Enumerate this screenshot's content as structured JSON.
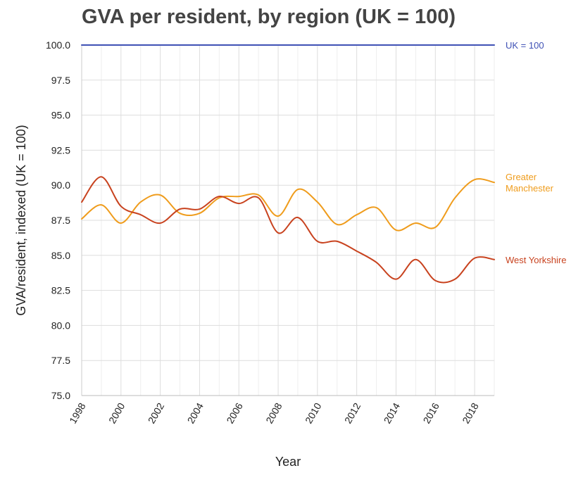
{
  "chart_data": {
    "type": "line",
    "title": "GVA per resident, by region (UK = 100)",
    "xlabel": "Year",
    "ylabel": "GVA/resident, indexed (UK = 100)",
    "xlim": [
      1998,
      2019
    ],
    "ylim": [
      75,
      100
    ],
    "x_ticks": [
      "1998",
      "2000",
      "2002",
      "2004",
      "2006",
      "2008",
      "2010",
      "2012",
      "2014",
      "2016",
      "2018"
    ],
    "y_ticks": [
      "75.0",
      "77.5",
      "80.0",
      "82.5",
      "85.0",
      "87.5",
      "90.0",
      "92.5",
      "95.0",
      "97.5",
      "100.0"
    ],
    "grid": true,
    "legend": "inline labels at right end of lines",
    "x": [
      1998,
      1999,
      2000,
      2001,
      2002,
      2003,
      2004,
      2005,
      2006,
      2007,
      2008,
      2009,
      2010,
      2011,
      2012,
      2013,
      2014,
      2015,
      2016,
      2017,
      2018,
      2019
    ],
    "series": [
      {
        "name": "UK = 100",
        "color": "#3f51b5",
        "label_lines": [
          "UK = 100"
        ],
        "values": [
          100,
          100,
          100,
          100,
          100,
          100,
          100,
          100,
          100,
          100,
          100,
          100,
          100,
          100,
          100,
          100,
          100,
          100,
          100,
          100,
          100,
          100
        ]
      },
      {
        "name": "Greater Manchester",
        "color": "#ef9c1c",
        "label_lines": [
          "Greater",
          "Manchester"
        ],
        "values": [
          87.6,
          88.6,
          87.3,
          88.8,
          89.3,
          88.0,
          88.0,
          89.1,
          89.2,
          89.3,
          87.8,
          89.7,
          88.8,
          87.2,
          87.9,
          88.4,
          86.8,
          87.3,
          87.0,
          89.1,
          90.4,
          90.2
        ]
      },
      {
        "name": "West Yorkshire",
        "color": "#c8421e",
        "label_lines": [
          "West Yorkshire"
        ],
        "values": [
          88.8,
          90.6,
          88.5,
          87.9,
          87.3,
          88.3,
          88.3,
          89.2,
          88.7,
          89.1,
          86.6,
          87.7,
          86.0,
          86.0,
          85.3,
          84.5,
          83.3,
          84.7,
          83.2,
          83.3,
          84.8,
          84.7
        ]
      }
    ]
  }
}
